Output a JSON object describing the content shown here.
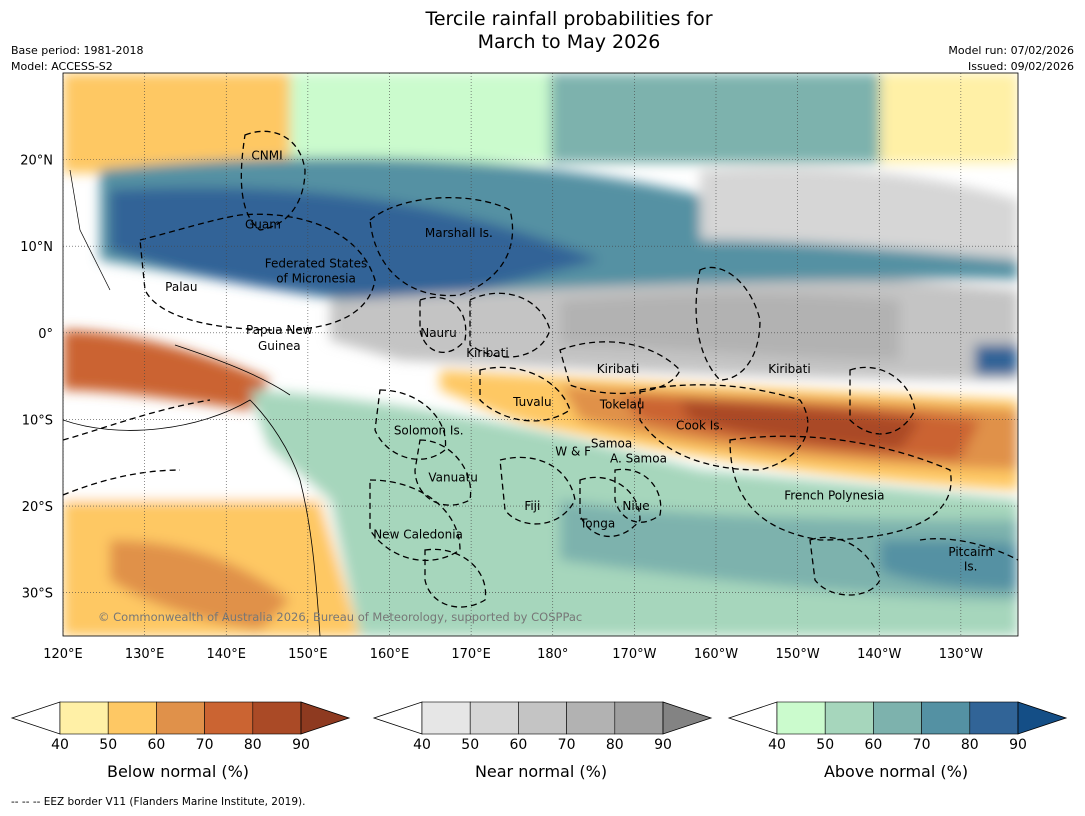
{
  "header": {
    "title_line1": "Tercile rainfall probabilities for",
    "title_line2": "March to May 2026",
    "base_period": "Base period: 1981-2018",
    "model": "Model: ACCESS-S2",
    "model_run": "Model run: 07/02/2026",
    "issued": "Issued: 09/02/2026"
  },
  "map": {
    "lon_ticks": [
      "120°E",
      "130°E",
      "140°E",
      "150°E",
      "160°E",
      "170°E",
      "180°",
      "170°W",
      "160°W",
      "150°W",
      "140°W",
      "130°W"
    ],
    "lat_ticks": [
      "20°N",
      "10°N",
      "0°",
      "10°S",
      "20°S",
      "30°S"
    ],
    "copyright": "© Commonwealth of Australia 2026, Bureau of Meteorology, supported by COSPPac",
    "regions": [
      {
        "name": "CNMI",
        "lon": 145.0,
        "lat": 20.5
      },
      {
        "name": "Guam",
        "lon": 144.5,
        "lat": 12.5
      },
      {
        "name": "Marshall Is.",
        "lon": 168.5,
        "lat": 11.5
      },
      {
        "name": "Federated States",
        "lon": 151.0,
        "lat": 8.0
      },
      {
        "name": "of Micronesia",
        "lon": 151.0,
        "lat": 6.3
      },
      {
        "name": "Palau",
        "lon": 134.5,
        "lat": 5.3
      },
      {
        "name": "Papua New",
        "lon": 146.5,
        "lat": 0.3
      },
      {
        "name": "Guinea",
        "lon": 146.5,
        "lat": -1.5
      },
      {
        "name": "Nauru",
        "lon": 166.0,
        "lat": 0.0
      },
      {
        "name": "Kiribati",
        "lon": 172.0,
        "lat": -2.3
      },
      {
        "name": "Kiribati",
        "lon": -172.0,
        "lat": -4.2
      },
      {
        "name": "Kiribati",
        "lon": -151.0,
        "lat": -4.2
      },
      {
        "name": "Tuvalu",
        "lon": 177.5,
        "lat": -8.0
      },
      {
        "name": "Tokelau",
        "lon": -171.5,
        "lat": -8.3
      },
      {
        "name": "Cook Is.",
        "lon": -162.0,
        "lat": -10.7
      },
      {
        "name": "Solomon Is.",
        "lon": 164.8,
        "lat": -11.3
      },
      {
        "name": "W & F",
        "lon": -177.5,
        "lat": -13.7
      },
      {
        "name": "Samoa",
        "lon": -172.8,
        "lat": -12.8
      },
      {
        "name": "A. Samoa",
        "lon": -169.5,
        "lat": -14.5
      },
      {
        "name": "Vanuatu",
        "lon": 167.8,
        "lat": -16.7
      },
      {
        "name": "French Polynesia",
        "lon": -145.5,
        "lat": -18.8
      },
      {
        "name": "Fiji",
        "lon": 177.5,
        "lat": -20.0
      },
      {
        "name": "Niue",
        "lon": -169.8,
        "lat": -20.0
      },
      {
        "name": "Tonga",
        "lon": -174.5,
        "lat": -22.0
      },
      {
        "name": "New Caledonia",
        "lon": 163.5,
        "lat": -23.3
      },
      {
        "name": "Pitcairn",
        "lon": -128.8,
        "lat": -25.3
      },
      {
        "name": "Is.",
        "lon": -128.8,
        "lat": -27.0
      }
    ]
  },
  "colorbars": [
    {
      "title": "Below normal (%)",
      "ticks": [
        "40",
        "50",
        "60",
        "70",
        "80",
        "90"
      ],
      "colors": [
        "#fff0a6",
        "#fec864",
        "#e0914a",
        "#cb6432",
        "#aa4a26"
      ],
      "under": "#ffffff",
      "over": "#8e3a20"
    },
    {
      "title": "Near normal (%)",
      "ticks": [
        "40",
        "50",
        "60",
        "70",
        "80",
        "90"
      ],
      "colors": [
        "#e6e6e6",
        "#d6d6d6",
        "#c4c4c4",
        "#b2b2b2",
        "#9f9f9f"
      ],
      "under": "#ffffff",
      "over": "#838383"
    },
    {
      "title": "Above normal (%)",
      "ticks": [
        "40",
        "50",
        "60",
        "70",
        "80",
        "90"
      ],
      "colors": [
        "#cbfbcd",
        "#a6d6bc",
        "#7db2ad",
        "#5491a3",
        "#316497"
      ],
      "under": "#ffffff",
      "over": "#144e86"
    }
  ],
  "footnote": "--  --  -- EEZ border V11 (Flanders Marine Institute, 2019)."
}
